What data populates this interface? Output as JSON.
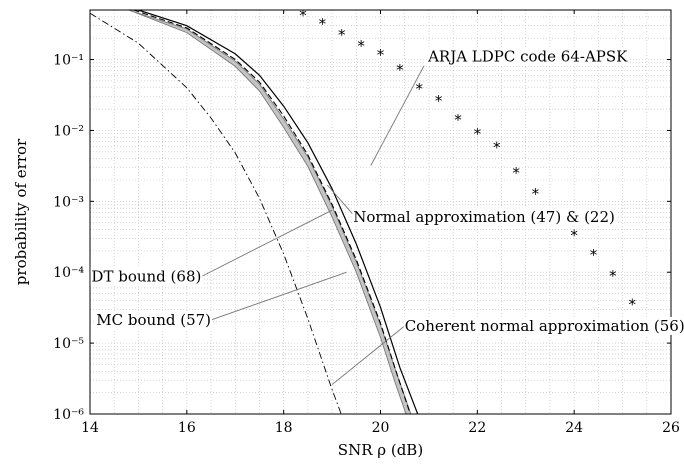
{
  "chart_data": {
    "type": "line",
    "title": "",
    "xlabel": "SNR ρ (dB)",
    "ylabel": "probability of error",
    "xlim": [
      14,
      26
    ],
    "ylim": [
      1e-06,
      0.5
    ],
    "yscale": "log",
    "grid": true,
    "x_ticks": [
      14,
      16,
      18,
      20,
      22,
      24,
      26
    ],
    "x_tick_labels": [
      "14",
      "16",
      "18",
      "20",
      "22",
      "24",
      "26"
    ],
    "y_ticks": [
      1e-06,
      1e-05,
      0.0001,
      0.001,
      0.01,
      0.1
    ],
    "y_tick_labels": [
      "10⁻⁶",
      "10⁻⁵",
      "10⁻⁴",
      "10⁻³",
      "10⁻²",
      "10⁻¹"
    ],
    "series": [
      {
        "name": "ARJA LDPC code 64-APSK",
        "style": "markers",
        "x": [
          18.4,
          18.8,
          19.2,
          19.6,
          20.0,
          20.4,
          20.8,
          21.2,
          21.6,
          22.0,
          22.4,
          22.8,
          23.2,
          23.6,
          24.0,
          24.4,
          24.8,
          25.2
        ],
        "y": [
          0.43,
          0.33,
          0.23,
          0.16,
          0.12,
          0.073,
          0.04,
          0.027,
          0.0145,
          0.0092,
          0.0059,
          0.0026,
          0.00132,
          0.00068,
          0.00034,
          0.00018,
          9.2e-05,
          3.6e-05
        ]
      },
      {
        "name": "Normal approximation (47) & (22)",
        "style": "solid",
        "x": [
          15.0,
          16.0,
          17.0,
          17.5,
          18.0,
          18.5,
          19.0,
          19.5,
          20.0,
          20.4,
          20.8
        ],
        "y": [
          0.5,
          0.3,
          0.12,
          0.06,
          0.022,
          0.0067,
          0.0015,
          0.00025,
          3.2e-05,
          4.5e-06,
          8.8e-07
        ]
      },
      {
        "name": "Coherent normal approximation (56)",
        "style": "dashed",
        "x": [
          14.9,
          16.0,
          17.0,
          17.5,
          18.0,
          18.5,
          19.0,
          19.5,
          20.0,
          20.35,
          20.65
        ],
        "y": [
          0.5,
          0.28,
          0.1,
          0.048,
          0.016,
          0.0045,
          0.0009,
          0.00015,
          1.9e-05,
          3.5e-06,
          8.5e-07
        ]
      },
      {
        "name": "DT bound (68)",
        "style": "band-upper",
        "x": [
          14.8,
          16.0,
          17.0,
          17.5,
          18.0,
          18.5,
          19.0,
          19.5,
          20.0,
          20.35,
          20.65
        ],
        "y": [
          0.5,
          0.27,
          0.095,
          0.045,
          0.0145,
          0.0042,
          0.00085,
          0.00014,
          1.8e-05,
          3.5e-06,
          9e-07
        ]
      },
      {
        "name": "MC bound (57)",
        "style": "band-lower",
        "x": [
          14.8,
          16.0,
          17.0,
          17.5,
          18.0,
          18.5,
          19.0,
          19.5,
          20.0,
          20.3,
          20.55
        ],
        "y": [
          0.5,
          0.24,
          0.08,
          0.036,
          0.011,
          0.0031,
          0.0006,
          0.0001,
          1.2e-05,
          2.8e-06,
          9e-07
        ]
      },
      {
        "name": "",
        "style": "dashdot",
        "x": [
          14.0,
          15.0,
          16.0,
          16.5,
          17.0,
          17.5,
          18.0,
          18.5,
          19.0,
          19.2
        ],
        "y": [
          0.45,
          0.17,
          0.04,
          0.015,
          0.0048,
          0.0011,
          0.00018,
          2.2e-05,
          2.2e-06,
          9.5e-07
        ]
      }
    ],
    "annotations": [
      {
        "text": "ARJA LDPC code 64-APSK",
        "text_x": 20.9,
        "text_y": 0.082,
        "point_x": 19.8,
        "point_y": 0.0032
      },
      {
        "text": "Normal approximation (47) & (22)",
        "text_x": 19.5,
        "text_y": 0.00058,
        "point_x": 18.9,
        "point_y": 0.0017
      },
      {
        "text": "DT bound (68)",
        "text_x": 16.3,
        "text_y": 8.7e-05,
        "point_x": 19.0,
        "point_y": 0.00075
      },
      {
        "text": "MC bound (57)",
        "text_x": 16.5,
        "text_y": 2.12e-05,
        "point_x": 19.3,
        "point_y": 0.0001
      },
      {
        "text": "Coherent normal approximation (56)",
        "text_x": 20.5,
        "text_y": 1.75e-05,
        "point_x": 19.0,
        "point_y": 2.6e-06
      }
    ]
  }
}
